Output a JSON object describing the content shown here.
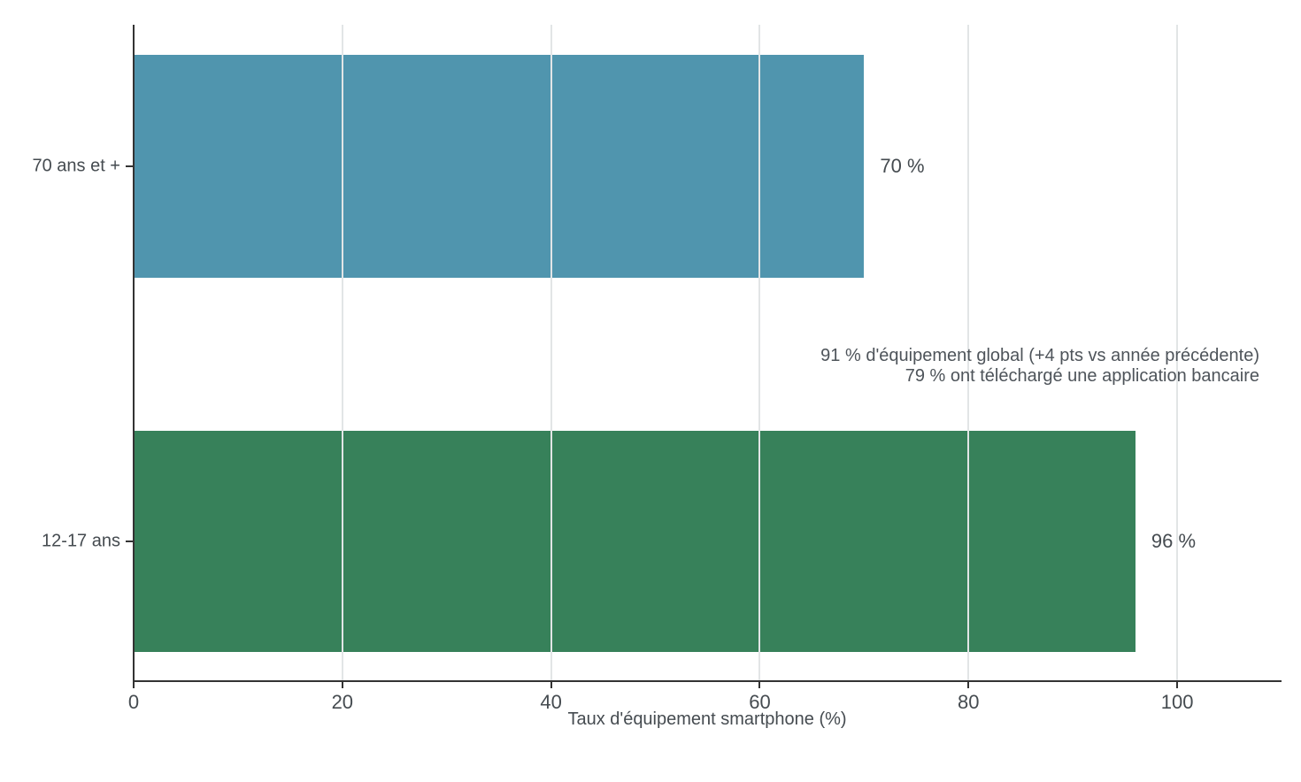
{
  "chart_data": {
    "type": "bar",
    "orientation": "horizontal",
    "title": "",
    "xlabel": "Taux d'équipement smartphone (%)",
    "ylabel": "",
    "xlim": [
      0,
      110
    ],
    "x_ticks": [
      0,
      20,
      40,
      60,
      80,
      100
    ],
    "grid": "vertical, light gray, drawn over bars",
    "legend": "none",
    "categories": [
      "70 ans et +",
      "12-17 ans"
    ],
    "values": [
      70,
      96
    ],
    "bars": [
      {
        "category": "70 ans et +",
        "value": 70,
        "value_label": "70 %",
        "color": "#5095ae"
      },
      {
        "category": "12-17 ans",
        "value": 96,
        "value_label": "96 %",
        "color": "#37815a"
      }
    ],
    "annotations": [
      "91 % d'équipement global (+4 pts vs année précédente)",
      "79 % ont téléchargé une application bancaire"
    ],
    "colors": {
      "background": "#ffffff",
      "axis": "#333333",
      "grid": "#e2e5e6",
      "tick_label_text": "#454b50",
      "annotation_text": "#4e545a",
      "bar_blue": "#5095ae",
      "bar_green": "#37815a"
    }
  }
}
